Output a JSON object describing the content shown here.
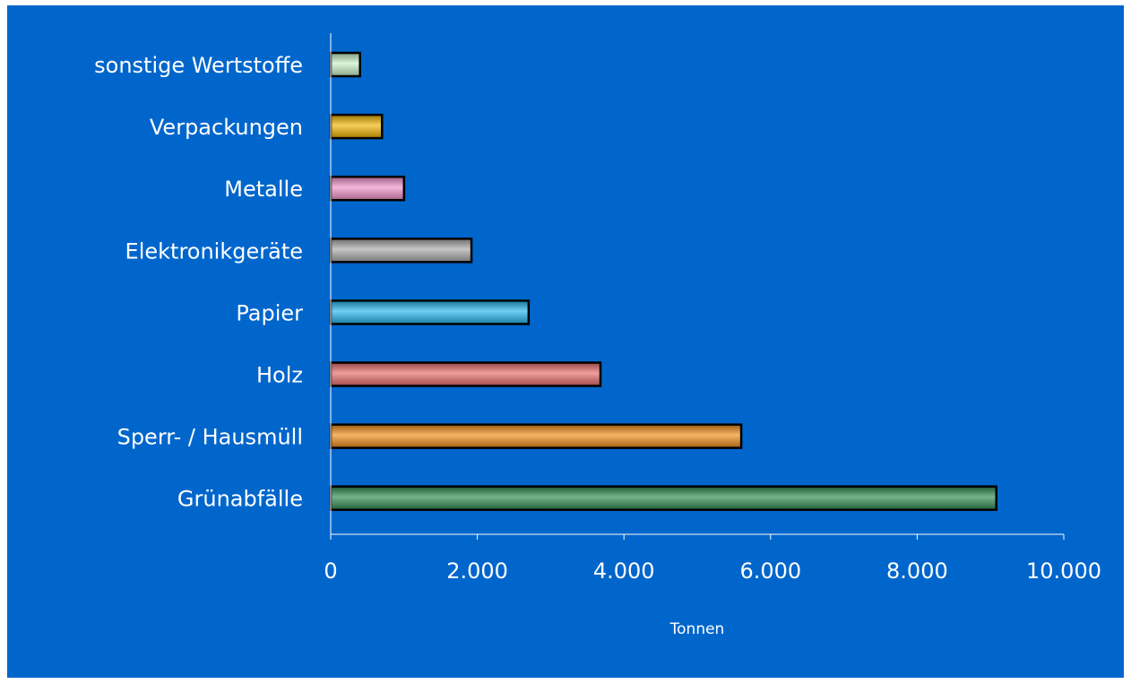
{
  "chart_data": {
    "type": "bar",
    "orientation": "horizontal",
    "categories": [
      "sonstige Wertstoffe",
      "Verpackungen",
      "Metalle",
      "Elektronikgeräte",
      "Papier",
      "Holz",
      "Sperr- / Hausmüll",
      "Grünabfälle"
    ],
    "values": [
      400,
      700,
      1000,
      1920,
      2700,
      3680,
      5600,
      9080
    ],
    "colors": [
      "#c8f0c8",
      "#f0b400",
      "#f090c8",
      "#a8a8a8",
      "#22b4ec",
      "#e86a6a",
      "#f08c14",
      "#2e8a50"
    ],
    "tick_values": [
      0,
      2000,
      4000,
      6000,
      8000,
      10000
    ],
    "tick_labels": [
      "0",
      "2.000",
      "4.000",
      "6.000",
      "8.000",
      "10.000"
    ],
    "xlabel": "Tonnen",
    "ylabel": "",
    "xlim": [
      0,
      10000
    ],
    "grid": false,
    "background": "#0066cc"
  }
}
